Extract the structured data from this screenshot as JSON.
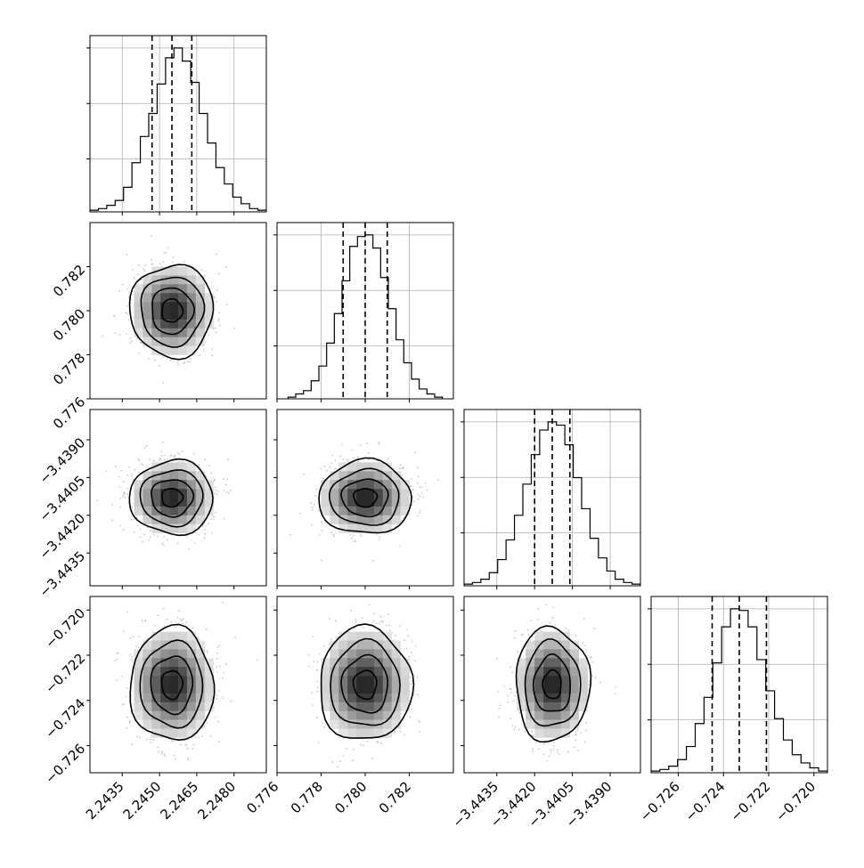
{
  "chart_data": {
    "type": "corner",
    "grid": true,
    "parameters": [
      {
        "range": [
          2.2422,
          2.2493
        ],
        "ticks": [
          2.2435,
          2.245,
          2.2465,
          2.248
        ],
        "tick_labels": [
          "2.2435",
          "2.2450",
          "2.2465",
          "2.2480"
        ],
        "quantiles": [
          2.2447,
          2.2455,
          2.2463
        ],
        "hist_edges": [
          2.2422,
          2.2493
        ],
        "hist": [
          0.01,
          0.02,
          0.04,
          0.07,
          0.15,
          0.3,
          0.46,
          0.6,
          0.78,
          0.94,
          1.0,
          0.92,
          0.79,
          0.6,
          0.42,
          0.27,
          0.17,
          0.09,
          0.05,
          0.02,
          0.01
        ]
      },
      {
        "range": [
          0.776,
          0.784
        ],
        "ticks": [
          0.776,
          0.778,
          0.78,
          0.782
        ],
        "tick_labels": [
          "0.776",
          "0.778",
          "0.780",
          "0.782"
        ],
        "quantiles": [
          0.779,
          0.78,
          0.781
        ],
        "hist_edges": [
          0.7765,
          0.7835
        ],
        "hist": [
          0.01,
          0.03,
          0.05,
          0.11,
          0.2,
          0.34,
          0.52,
          0.72,
          0.93,
          0.99,
          1.0,
          0.92,
          0.74,
          0.55,
          0.36,
          0.22,
          0.12,
          0.06,
          0.03,
          0.01
        ]
      },
      {
        "range": [
          -3.4448,
          -3.4378
        ],
        "ticks": [
          -3.4435,
          -3.442,
          -3.4405,
          -3.439
        ],
        "tick_labels": [
          "−3.4435",
          "−3.4420",
          "−3.4405",
          "−3.4390"
        ],
        "quantiles": [
          -3.442,
          -3.4413,
          -3.4406
        ],
        "hist_edges": [
          -3.4448,
          -3.4378
        ],
        "hist": [
          0.01,
          0.02,
          0.04,
          0.08,
          0.16,
          0.28,
          0.43,
          0.62,
          0.8,
          0.95,
          1.0,
          0.98,
          0.86,
          0.66,
          0.47,
          0.29,
          0.17,
          0.09,
          0.04,
          0.02,
          0.01
        ]
      },
      {
        "range": [
          -0.7272,
          -0.7194
        ],
        "ticks": [
          -0.726,
          -0.724,
          -0.722,
          -0.72
        ],
        "tick_labels": [
          "−0.726",
          "−0.724",
          "−0.722",
          "−0.720"
        ],
        "quantiles": [
          -0.7245,
          -0.7233,
          -0.7221
        ],
        "hist_edges": [
          -0.7272,
          -0.7194
        ],
        "hist": [
          0.01,
          0.02,
          0.04,
          0.08,
          0.16,
          0.3,
          0.46,
          0.67,
          0.89,
          1.0,
          0.99,
          0.89,
          0.69,
          0.5,
          0.33,
          0.2,
          0.11,
          0.06,
          0.03,
          0.01
        ]
      }
    ],
    "y_tick_labels_hist": [
      "",
      "",
      ""
    ],
    "contours": {
      "levels_sigma": [
        0.5,
        1.0,
        1.5,
        2.0
      ],
      "correlation": 0.0
    }
  }
}
